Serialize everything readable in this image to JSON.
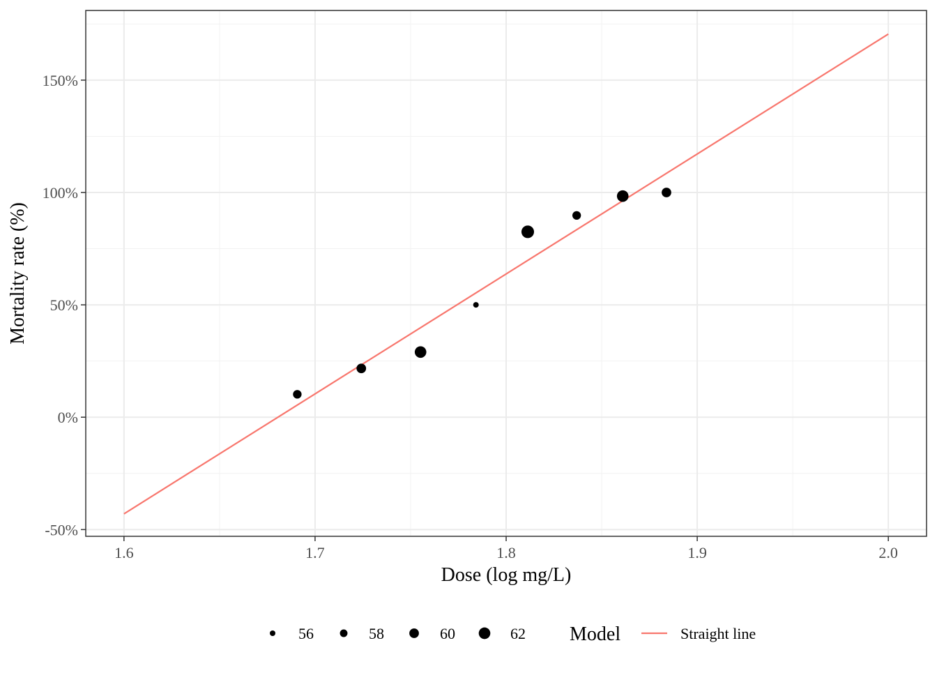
{
  "chart_data": {
    "type": "scatter",
    "xlabel": "Dose (log mg/L)",
    "ylabel": "Mortality rate (%)",
    "xlim": [
      1.58,
      2.02
    ],
    "ylim": [
      -53,
      181
    ],
    "x_ticks": [
      1.6,
      1.7,
      1.8,
      1.9,
      2.0
    ],
    "x_tick_labels": [
      "1.6",
      "1.7",
      "1.8",
      "1.9",
      "2.0"
    ],
    "y_ticks": [
      -50,
      0,
      50,
      100,
      150
    ],
    "y_tick_labels": [
      "-50%",
      "0%",
      "50%",
      "100%",
      "150%"
    ],
    "grid": true,
    "legend_position": "bottom",
    "point_color": "#000000",
    "line_color": "#f8766d",
    "points": [
      {
        "x": 1.6907,
        "y": 10.2,
        "n": 59
      },
      {
        "x": 1.7242,
        "y": 21.7,
        "n": 60
      },
      {
        "x": 1.7552,
        "y": 29.0,
        "n": 62
      },
      {
        "x": 1.7842,
        "y": 50.0,
        "n": 56
      },
      {
        "x": 1.8113,
        "y": 82.5,
        "n": 63
      },
      {
        "x": 1.8369,
        "y": 89.8,
        "n": 59
      },
      {
        "x": 1.861,
        "y": 98.4,
        "n": 62
      },
      {
        "x": 1.8839,
        "y": 100.0,
        "n": 60
      }
    ],
    "size_legend": {
      "labels": [
        "56",
        "58",
        "60",
        "62"
      ],
      "values": [
        56,
        58,
        60,
        62
      ]
    },
    "model_legend": {
      "title": "Model",
      "entries": [
        {
          "label": "Straight line",
          "color": "#f8766d"
        }
      ]
    },
    "fitted_line": {
      "name": "Straight line",
      "x": [
        1.6,
        2.0
      ],
      "y": [
        -43.0,
        170.5
      ]
    }
  }
}
